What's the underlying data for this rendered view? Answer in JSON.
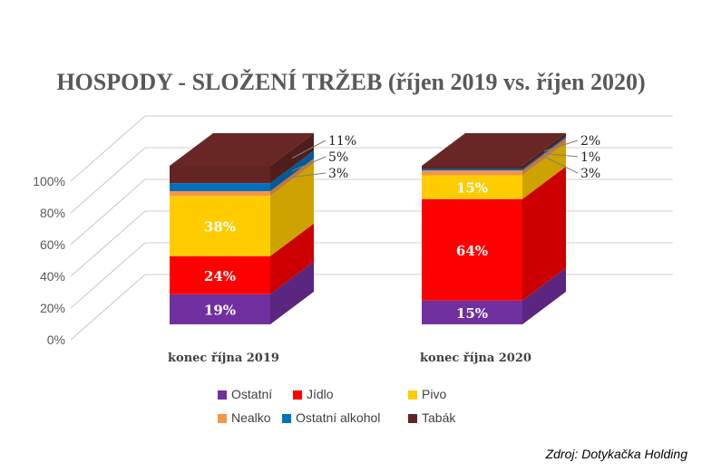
{
  "chart_data": {
    "type": "bar",
    "stacked": true,
    "percent": true,
    "title": "HOSPODY - SLOŽENÍ TRŽEB (říjen 2019 vs. říjen 2020)",
    "categories": [
      "konec října 2019",
      "konec října 2020"
    ],
    "series": [
      {
        "name": "Ostatní",
        "values": [
          19,
          15
        ],
        "color": "#7030a0"
      },
      {
        "name": "Jídlo",
        "values": [
          24,
          64
        ],
        "color": "#ff0000"
      },
      {
        "name": "Pivo",
        "values": [
          38,
          15
        ],
        "color": "#ffcc00"
      },
      {
        "name": "Nealko",
        "values": [
          3,
          3
        ],
        "color": "#f79646"
      },
      {
        "name": "Ostatní alkohol",
        "values": [
          5,
          1
        ],
        "color": "#0070c0"
      },
      {
        "name": "Tabák",
        "values": [
          11,
          2
        ],
        "color": "#632523"
      }
    ],
    "yticks": [
      "0%",
      "20%",
      "40%",
      "60%",
      "80%",
      "100%"
    ],
    "ylim": [
      0,
      100
    ],
    "legend_position": "bottom",
    "xlabel": "",
    "ylabel": ""
  },
  "source": "Zdroj: Dotykačka Holding"
}
